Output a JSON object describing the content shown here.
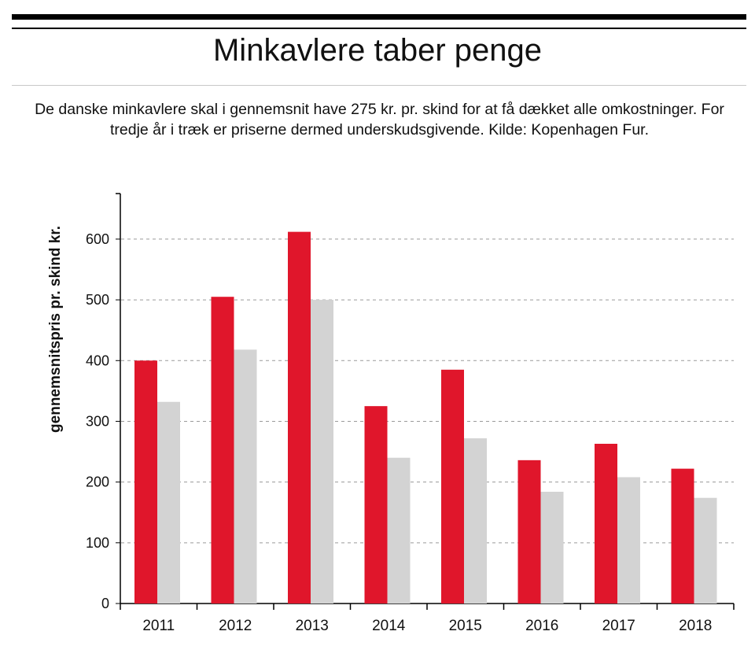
{
  "header": {
    "title": "Minkavlere taber penge",
    "subtitle": "De danske minkavlere skal i gennemsnit have 275 kr. pr. skind for at få dækket alle omkostninger. For tredje år i træk er priserne dermed underskudsgivende. Kilde: Kopenhagen Fur."
  },
  "colors": {
    "series_red": "#e0162b",
    "series_grey": "#d3d3d3"
  },
  "chart_data": {
    "type": "bar",
    "title": "Minkavlere taber penge",
    "subtitle": "De danske minkavlere skal i gennemsnit have 275 kr. pr. skind for at få dækket alle omkostninger. For tredje år i træk er priserne dermed underskudsgivende. Kilde: Kopenhagen Fur.",
    "xlabel": "",
    "ylabel": "gennemsnitspris pr. skind kr.",
    "categories": [
      "2011",
      "2012",
      "2013",
      "2014",
      "2015",
      "2016",
      "2017",
      "2018"
    ],
    "series": [
      {
        "values": [
          400,
          505,
          612,
          325,
          385,
          236,
          263,
          222
        ],
        "color": "#e0162b"
      },
      {
        "values": [
          332,
          418,
          500,
          240,
          272,
          184,
          208,
          174
        ],
        "color": "#d3d3d3"
      }
    ],
    "yticks": [
      "0",
      "100",
      "200",
      "300",
      "400",
      "500",
      "600"
    ],
    "ylim": [
      0,
      675
    ],
    "grid": "horizontal dashed",
    "legend": "none"
  }
}
